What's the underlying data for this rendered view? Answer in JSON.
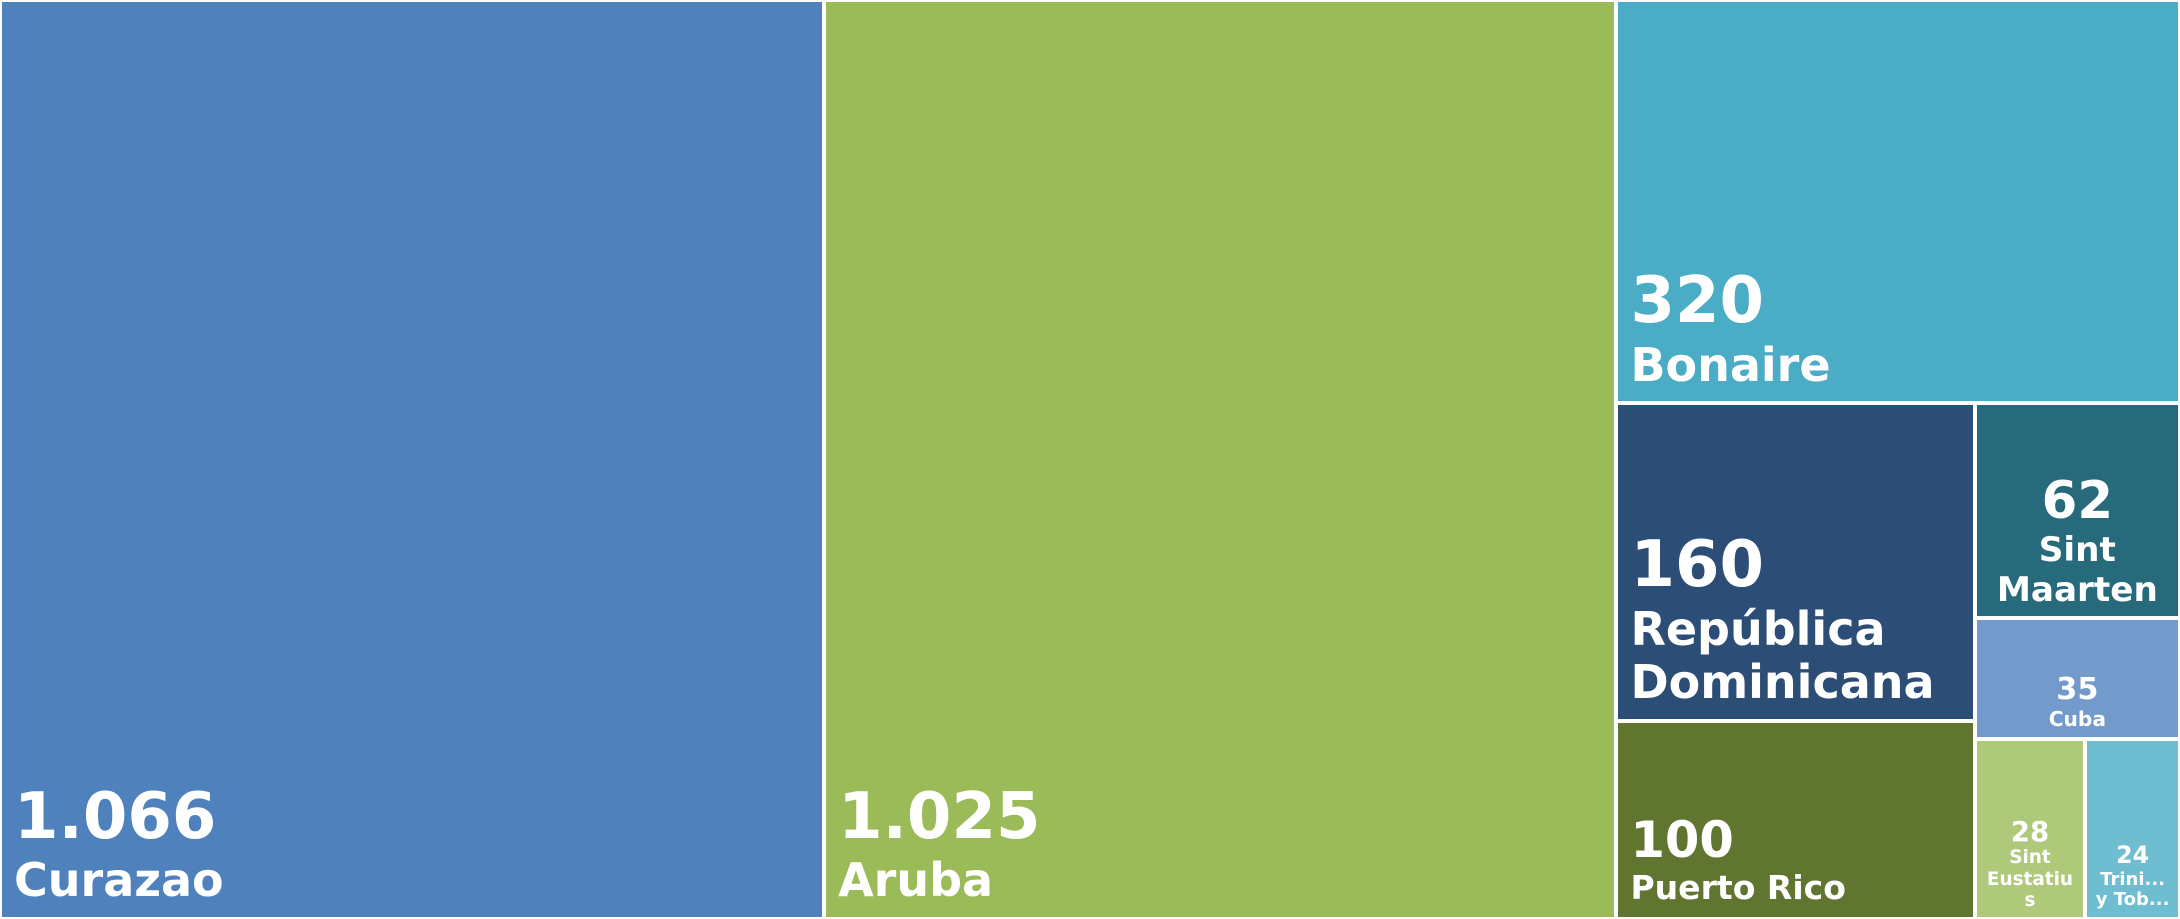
{
  "chart_data": {
    "type": "treemap",
    "categories": [
      "Curazao",
      "Aruba",
      "Bonaire",
      "República Dominicana",
      "Puerto Rico",
      "Sint Maarten",
      "Cuba",
      "Sint Eustatius",
      "Trini... y Tob..."
    ],
    "values": [
      1066,
      1025,
      320,
      160,
      100,
      62,
      35,
      28,
      24
    ],
    "value_labels": [
      "1.066",
      "1.025",
      "320",
      "160",
      "100",
      "62",
      "35",
      "28",
      "24"
    ],
    "colors": [
      "#4f81bd",
      "#9bbb59",
      "#4bacc6",
      "#2c4d75",
      "#5f7530",
      "#276a7c",
      "#729aca",
      "#afc97a",
      "#6fbdd1"
    ]
  }
}
